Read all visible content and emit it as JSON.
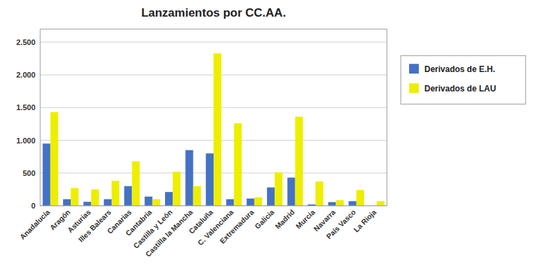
{
  "chart_data": {
    "type": "bar",
    "title": "Lanzamientos por CC.AA.",
    "categories": [
      "Anadalucía",
      "Aragón",
      "Asturias",
      "Illes Balears",
      "Canarias",
      "Cantabria",
      "Castilla y León",
      "Castilla la Mancha",
      "Cataluña",
      "C. Valenciana",
      "Extremadura",
      "Galicia",
      "Madrid",
      "Murcia",
      "Navarra",
      "País Vasco",
      "La Rioja"
    ],
    "series": [
      {
        "name": "Derivados de E.H.",
        "color": "#4472C4",
        "values": [
          950,
          100,
          60,
          100,
          300,
          140,
          210,
          850,
          800,
          100,
          110,
          280,
          430,
          20,
          55,
          70,
          0
        ]
      },
      {
        "name": "Derivados de LAU",
        "color": "#EEEE00",
        "values": [
          1430,
          270,
          250,
          380,
          680,
          100,
          520,
          300,
          2330,
          1260,
          130,
          510,
          1360,
          370,
          85,
          240,
          70
        ]
      }
    ],
    "ylim": [
      0,
      2700
    ],
    "yticks": [
      0,
      500,
      {
        "value": 1000,
        "label": "1.000"
      },
      {
        "value": 1500,
        "label": "1.500"
      },
      {
        "value": 2000,
        "label": "2.000"
      },
      {
        "value": 2500,
        "label": "2.500"
      }
    ],
    "grid": true,
    "legend": "right"
  }
}
